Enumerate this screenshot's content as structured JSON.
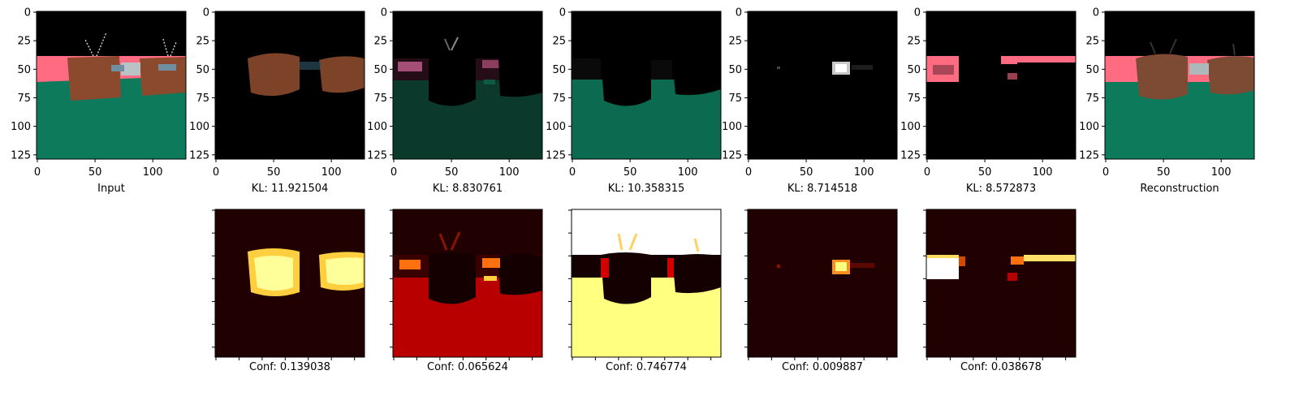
{
  "top_row": [
    {
      "caption": "Input"
    },
    {
      "caption": "KL: 11.921504"
    },
    {
      "caption": "KL: 8.830761"
    },
    {
      "caption": "KL: 10.358315"
    },
    {
      "caption": "KL: 8.714518"
    },
    {
      "caption": "KL: 8.572873"
    },
    {
      "caption": "Reconstruction"
    }
  ],
  "bottom_row": [
    {
      "caption": "Conf: 0.139038"
    },
    {
      "caption": "Conf: 0.065624"
    },
    {
      "caption": "Conf: 0.746774"
    },
    {
      "caption": "Conf: 0.009887"
    },
    {
      "caption": "Conf: 0.038678"
    }
  ],
  "axes": {
    "x_ticks": [
      "0",
      "50",
      "100"
    ],
    "y_ticks": [
      "0",
      "25",
      "50",
      "75",
      "100",
      "125"
    ]
  },
  "colors": {
    "sky": "#000000",
    "wall": "#ff6b81",
    "floor": "#0d7a5b",
    "box": "#8b4a2e",
    "heat_low": "#200000",
    "heat_mid": "#d40000",
    "heat_high": "#ffff60",
    "heat_max": "#ffffff"
  }
}
